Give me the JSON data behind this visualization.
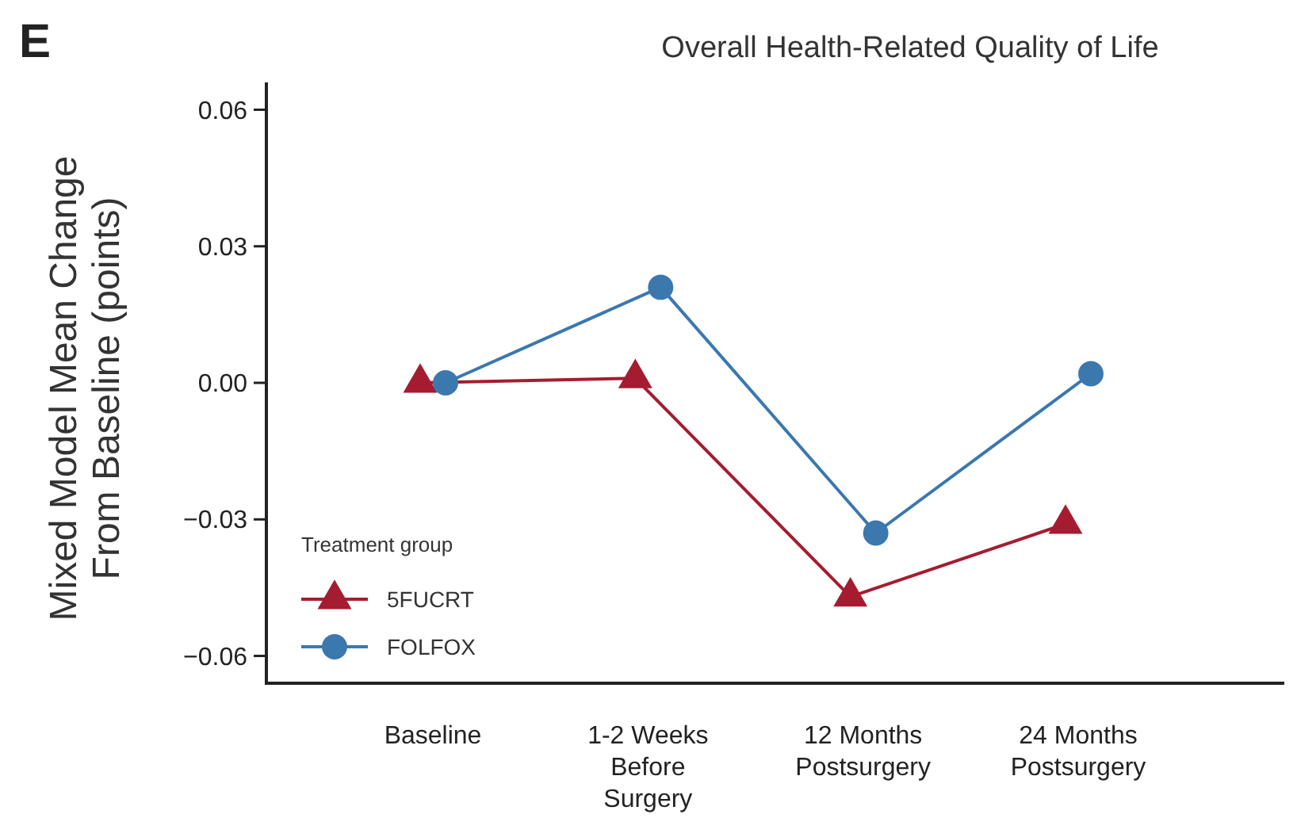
{
  "chart_data": {
    "type": "line",
    "title": "Overall Health-Related Quality of Life",
    "ylabel": "Mixed Model Mean Change\nFrom Baseline (points)",
    "legend_title": "Treatment group",
    "annotations": [
      "E"
    ],
    "categories": [
      "Baseline",
      "1-2 Weeks\nBefore\nSurgery",
      "12 Months\nPostsurgery",
      "24 Months\nPostsurgery"
    ],
    "series": [
      {
        "name": "5FUCRT",
        "color": "#a51c30",
        "marker": "triangle",
        "values": [
          0,
          0.001,
          -0.047,
          -0.031
        ]
      },
      {
        "name": "FOLFOX",
        "color": "#3a78ae",
        "marker": "circle",
        "values": [
          0,
          0.021,
          -0.033,
          0.002
        ]
      }
    ],
    "ylim": [
      -0.066,
      0.066
    ],
    "yticks": [
      {
        "value": 0.06,
        "label": "0.06"
      },
      {
        "value": 0.03,
        "label": "0.03"
      },
      {
        "value": 0,
        "label": "0.00"
      },
      {
        "value": -0.03,
        "label": "−0.03"
      },
      {
        "value": -0.06,
        "label": "−0.06"
      }
    ],
    "grid": false,
    "legend": "bottom left",
    "line_style": "solid"
  }
}
